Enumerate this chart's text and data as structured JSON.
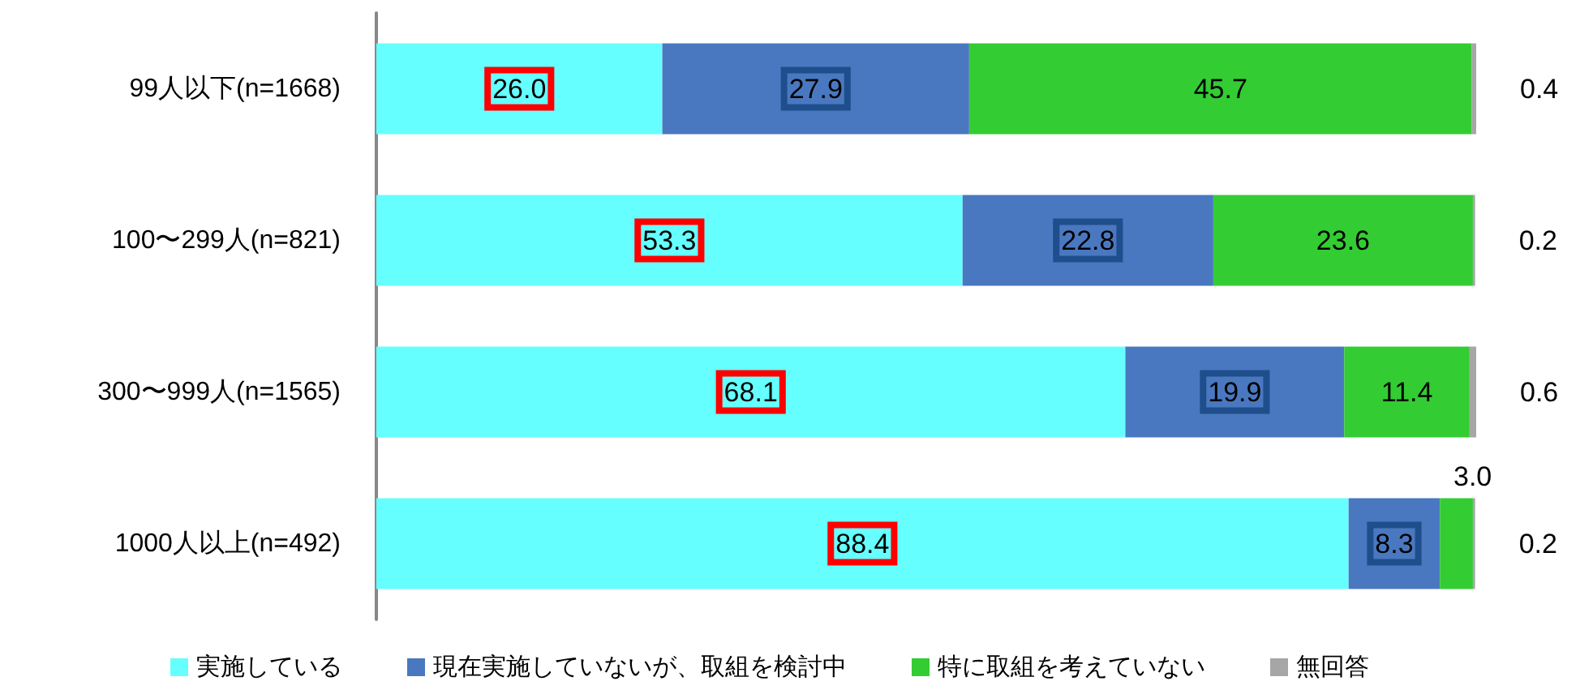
{
  "chart_data": {
    "type": "bar",
    "orientation": "horizontal",
    "stacked": true,
    "legend": "bottom",
    "categories": [
      "99人以下(n=1668)",
      "100〜299人(n=821)",
      "300〜999人(n=1565)",
      "1000人以上(n=492)"
    ],
    "series": [
      {
        "name": "実施している",
        "color": "#66ffff",
        "values": [
          26.0,
          53.3,
          68.1,
          88.4
        ],
        "value_labels": [
          "26.0",
          "53.3",
          "68.1",
          "88.4"
        ]
      },
      {
        "name": "現在実施していないが、取組を検討中",
        "color": "#4a78c0",
        "values": [
          27.9,
          22.8,
          19.9,
          8.3
        ],
        "value_labels": [
          "27.9",
          "22.8",
          "19.9",
          "8.3"
        ]
      },
      {
        "name": "特に取組を考えていない",
        "color": "#33cc33",
        "values": [
          45.7,
          23.6,
          11.4,
          3.0
        ],
        "value_labels": [
          "45.7",
          "23.6",
          "11.4",
          "3.0"
        ]
      },
      {
        "name": "無回答",
        "color": "#a6a6a6",
        "values": [
          0.4,
          0.2,
          0.6,
          0.2
        ],
        "value_labels": [
          "0.4",
          "0.2",
          "0.6",
          "0.2"
        ]
      }
    ]
  }
}
